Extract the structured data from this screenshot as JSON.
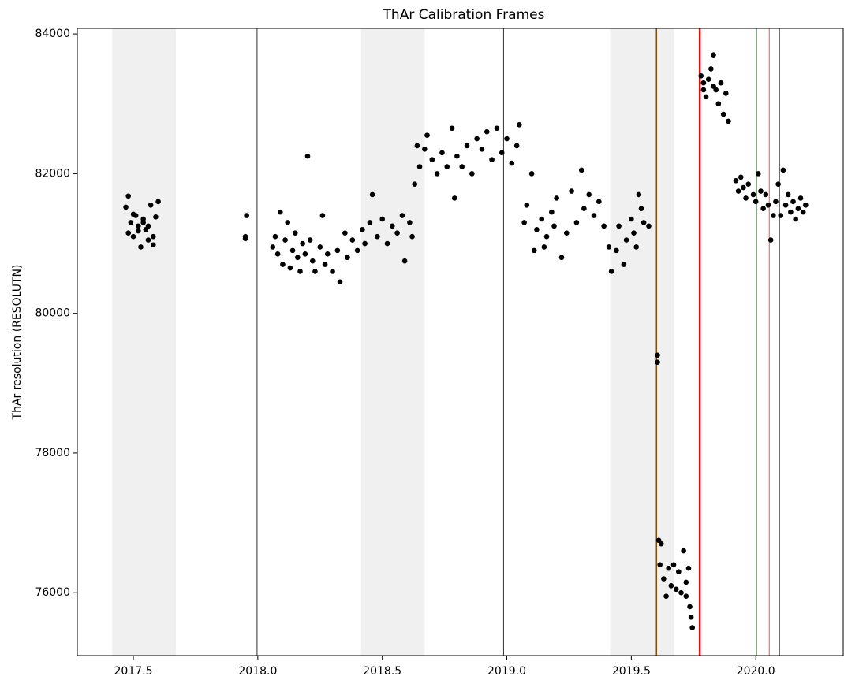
{
  "chart_data": {
    "type": "scatter",
    "title": "ThAr Calibration Frames",
    "y_label": "ThAr resolution (RESOLUTN)",
    "color": "#000000",
    "xlim": [
      2017.275,
      2020.351
    ],
    "ylim": [
      75100,
      84080
    ],
    "xticks": [
      2017.5,
      {
        "value": 2018,
        "label": "2018.0"
      },
      2018.5,
      {
        "value": 2019,
        "label": "2019.0"
      },
      2019.5,
      {
        "value": 2020,
        "label": "2020.0"
      }
    ],
    "yticks": [
      76000,
      78000,
      80000,
      82000,
      84000
    ],
    "shaded_regions": [
      {
        "start": 2017.415,
        "end": 2017.671,
        "color": "#f0f0f0"
      },
      {
        "start": 2018.415,
        "end": 2018.67,
        "color": "#f0f0f0"
      },
      {
        "start": 2019.415,
        "end": 2019.67,
        "color": "#f0f0f0"
      }
    ],
    "vertical_lines": [
      {
        "x": 2017.997,
        "color": "#333333",
        "linewidth": 1
      },
      {
        "x": 2018.987,
        "color": "#333333",
        "linewidth": 1
      },
      {
        "x": 2019.601,
        "color": "#8b4a00",
        "linewidth": 1.5
      },
      {
        "x": 2019.775,
        "color": "#dd1111",
        "linewidth": 2.5
      },
      {
        "x": 2020.003,
        "color": "#2e8b2e",
        "linewidth": 1
      },
      {
        "x": 2020.054,
        "color": "#ee5555",
        "linewidth": 1
      },
      {
        "x": 2020.095,
        "color": "#333333",
        "linewidth": 1
      }
    ],
    "x": [
      2017.47,
      2017.48,
      2017.49,
      2017.5,
      2017.51,
      2017.52,
      2017.53,
      2017.54,
      2017.55,
      2017.56,
      2017.57,
      2017.58,
      2017.59,
      2017.6,
      2017.48,
      2017.5,
      2017.52,
      2017.54,
      2017.56,
      2017.58,
      2017.95,
      2017.955,
      2017.95,
      2018.06,
      2018.07,
      2018.08,
      2018.09,
      2018.1,
      2018.11,
      2018.12,
      2018.13,
      2018.14,
      2018.15,
      2018.16,
      2018.17,
      2018.18,
      2018.19,
      2018.2,
      2018.21,
      2018.22,
      2018.23,
      2018.25,
      2018.26,
      2018.27,
      2018.28,
      2018.3,
      2018.32,
      2018.33,
      2018.35,
      2018.36,
      2018.38,
      2018.4,
      2018.42,
      2018.43,
      2018.45,
      2018.46,
      2018.48,
      2018.5,
      2018.52,
      2018.54,
      2018.56,
      2018.58,
      2018.59,
      2018.61,
      2018.62,
      2018.63,
      2018.64,
      2018.65,
      2018.67,
      2018.68,
      2018.7,
      2018.72,
      2018.74,
      2018.76,
      2018.78,
      2018.79,
      2018.8,
      2018.82,
      2018.84,
      2018.86,
      2018.88,
      2018.9,
      2018.92,
      2018.94,
      2018.96,
      2018.98,
      2019.0,
      2019.02,
      2019.04,
      2019.05,
      2019.07,
      2019.08,
      2019.1,
      2019.11,
      2019.12,
      2019.14,
      2019.15,
      2019.16,
      2019.18,
      2019.19,
      2019.2,
      2019.22,
      2019.24,
      2019.26,
      2019.28,
      2019.3,
      2019.31,
      2019.33,
      2019.35,
      2019.37,
      2019.39,
      2019.41,
      2019.42,
      2019.44,
      2019.45,
      2019.47,
      2019.48,
      2019.5,
      2019.51,
      2019.52,
      2019.53,
      2019.54,
      2019.55,
      2019.57,
      2019.605,
      2019.605,
      2019.61,
      2019.615,
      2019.62,
      2019.63,
      2019.64,
      2019.65,
      2019.66,
      2019.67,
      2019.68,
      2019.69,
      2019.7,
      2019.71,
      2019.72,
      2019.73,
      2019.735,
      2019.74,
      2019.745,
      2019.72,
      2019.78,
      2019.79,
      2019.8,
      2019.81,
      2019.82,
      2019.83,
      2019.84,
      2019.85,
      2019.86,
      2019.87,
      2019.88,
      2019.89,
      2019.79,
      2019.83,
      2019.92,
      2019.93,
      2019.94,
      2019.95,
      2019.96,
      2019.97,
      2019.99,
      2020.0,
      2020.01,
      2020.02,
      2020.03,
      2020.04,
      2020.05,
      2020.06,
      2020.07,
      2020.08,
      2020.09,
      2020.1,
      2020.11,
      2020.12,
      2020.13,
      2020.14,
      2020.15,
      2020.16,
      2020.17,
      2020.18,
      2020.19,
      2020.2
    ],
    "values": [
      81520,
      81680,
      81300,
      81100,
      81400,
      81250,
      80950,
      81350,
      81200,
      81050,
      81550,
      80980,
      81380,
      81600,
      81150,
      81420,
      81180,
      81300,
      81250,
      81100,
      81100,
      81400,
      81070,
      80950,
      81100,
      80850,
      81450,
      80700,
      81050,
      81300,
      80650,
      80900,
      81150,
      80800,
      80600,
      81000,
      80850,
      82250,
      81050,
      80750,
      80600,
      80950,
      81400,
      80700,
      80850,
      80600,
      80900,
      80450,
      81150,
      80800,
      81050,
      80900,
      81200,
      81000,
      81300,
      81700,
      81100,
      81350,
      81000,
      81250,
      81150,
      81400,
      80750,
      81300,
      81100,
      81850,
      82400,
      82100,
      82350,
      82550,
      82200,
      82000,
      82300,
      82100,
      82650,
      81650,
      82250,
      82100,
      82400,
      82000,
      82500,
      82350,
      82600,
      82200,
      82650,
      82300,
      82500,
      82150,
      82400,
      82700,
      81300,
      81550,
      82000,
      80900,
      81200,
      81350,
      80950,
      81100,
      81450,
      81250,
      81650,
      80800,
      81150,
      81750,
      81300,
      82050,
      81500,
      81700,
      81400,
      81600,
      81250,
      80950,
      80600,
      80900,
      81250,
      80700,
      81050,
      81350,
      81150,
      80950,
      81700,
      81500,
      81300,
      81250,
      79400,
      79300,
      76750,
      76400,
      76700,
      76200,
      75950,
      76350,
      76100,
      76400,
      76050,
      76300,
      76000,
      76600,
      76150,
      76350,
      75800,
      75650,
      75500,
      75950,
      83400,
      83300,
      83100,
      83350,
      83500,
      83700,
      83200,
      83000,
      83300,
      82850,
      83150,
      82750,
      83200,
      83250,
      81900,
      81750,
      81950,
      81800,
      81650,
      81850,
      81700,
      81600,
      82000,
      81750,
      81500,
      81700,
      81550,
      81050,
      81400,
      81600,
      81850,
      81400,
      82050,
      81550,
      81700,
      81450,
      81600,
      81350,
      81500,
      81650,
      81450,
      81550
    ]
  }
}
